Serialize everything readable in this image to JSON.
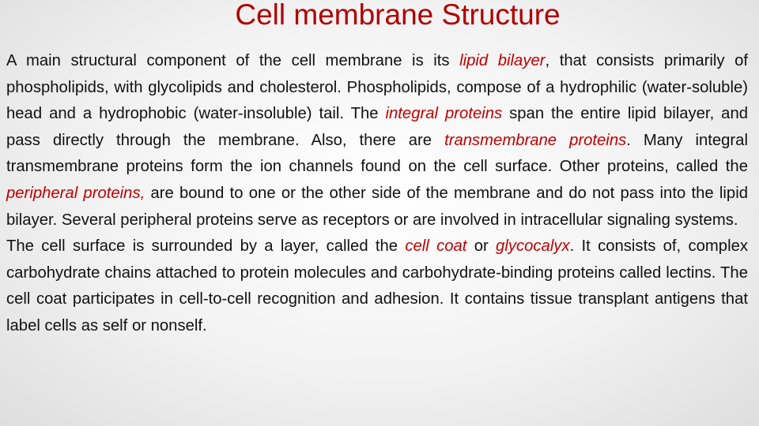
{
  "title": "Cell membrane Structure",
  "term_color": "#c00000",
  "paragraphs": [
    {
      "runs": [
        {
          "text": "A main structural component of the cell membrane is its "
        },
        {
          "text": "lipid bilayer",
          "term": true
        },
        {
          "text": ", that consists primarily of phospholipids, with glycolipids and cholesterol. Phospholipids, compose of a hydrophilic (water-soluble) head and a hydrophobic (water-insoluble) tail. The "
        },
        {
          "text": "integral proteins",
          "term": true
        },
        {
          "text": " span the entire lipid bilayer, and pass directly through the membrane.  Also, there are "
        },
        {
          "text": "transmembrane proteins",
          "term": true
        },
        {
          "text": ". Many integral transmembrane proteins form the ion channels found on the cell surface. Other proteins, called the "
        },
        {
          "text": "peripheral proteins,",
          "term": true
        },
        {
          "text": " are bound to one or the other side of the membrane and do not pass into the lipid bilayer. Several peripheral proteins serve as receptors or are involved in intracellular signaling systems."
        }
      ]
    },
    {
      "runs": [
        {
          "text": "The cell surface is surrounded by a layer, called the "
        },
        {
          "text": "cell coat",
          "term": true
        },
        {
          "text": " or "
        },
        {
          "text": "glycocalyx",
          "term": true
        },
        {
          "text": ". It consists of, complex carbohydrate chains attached to protein molecules and carbohydrate-binding proteins called lectins. The cell coat participates in cell-to-cell recognition and adhesion. It contains tissue transplant antigens that label cells as self or nonself."
        }
      ]
    }
  ]
}
